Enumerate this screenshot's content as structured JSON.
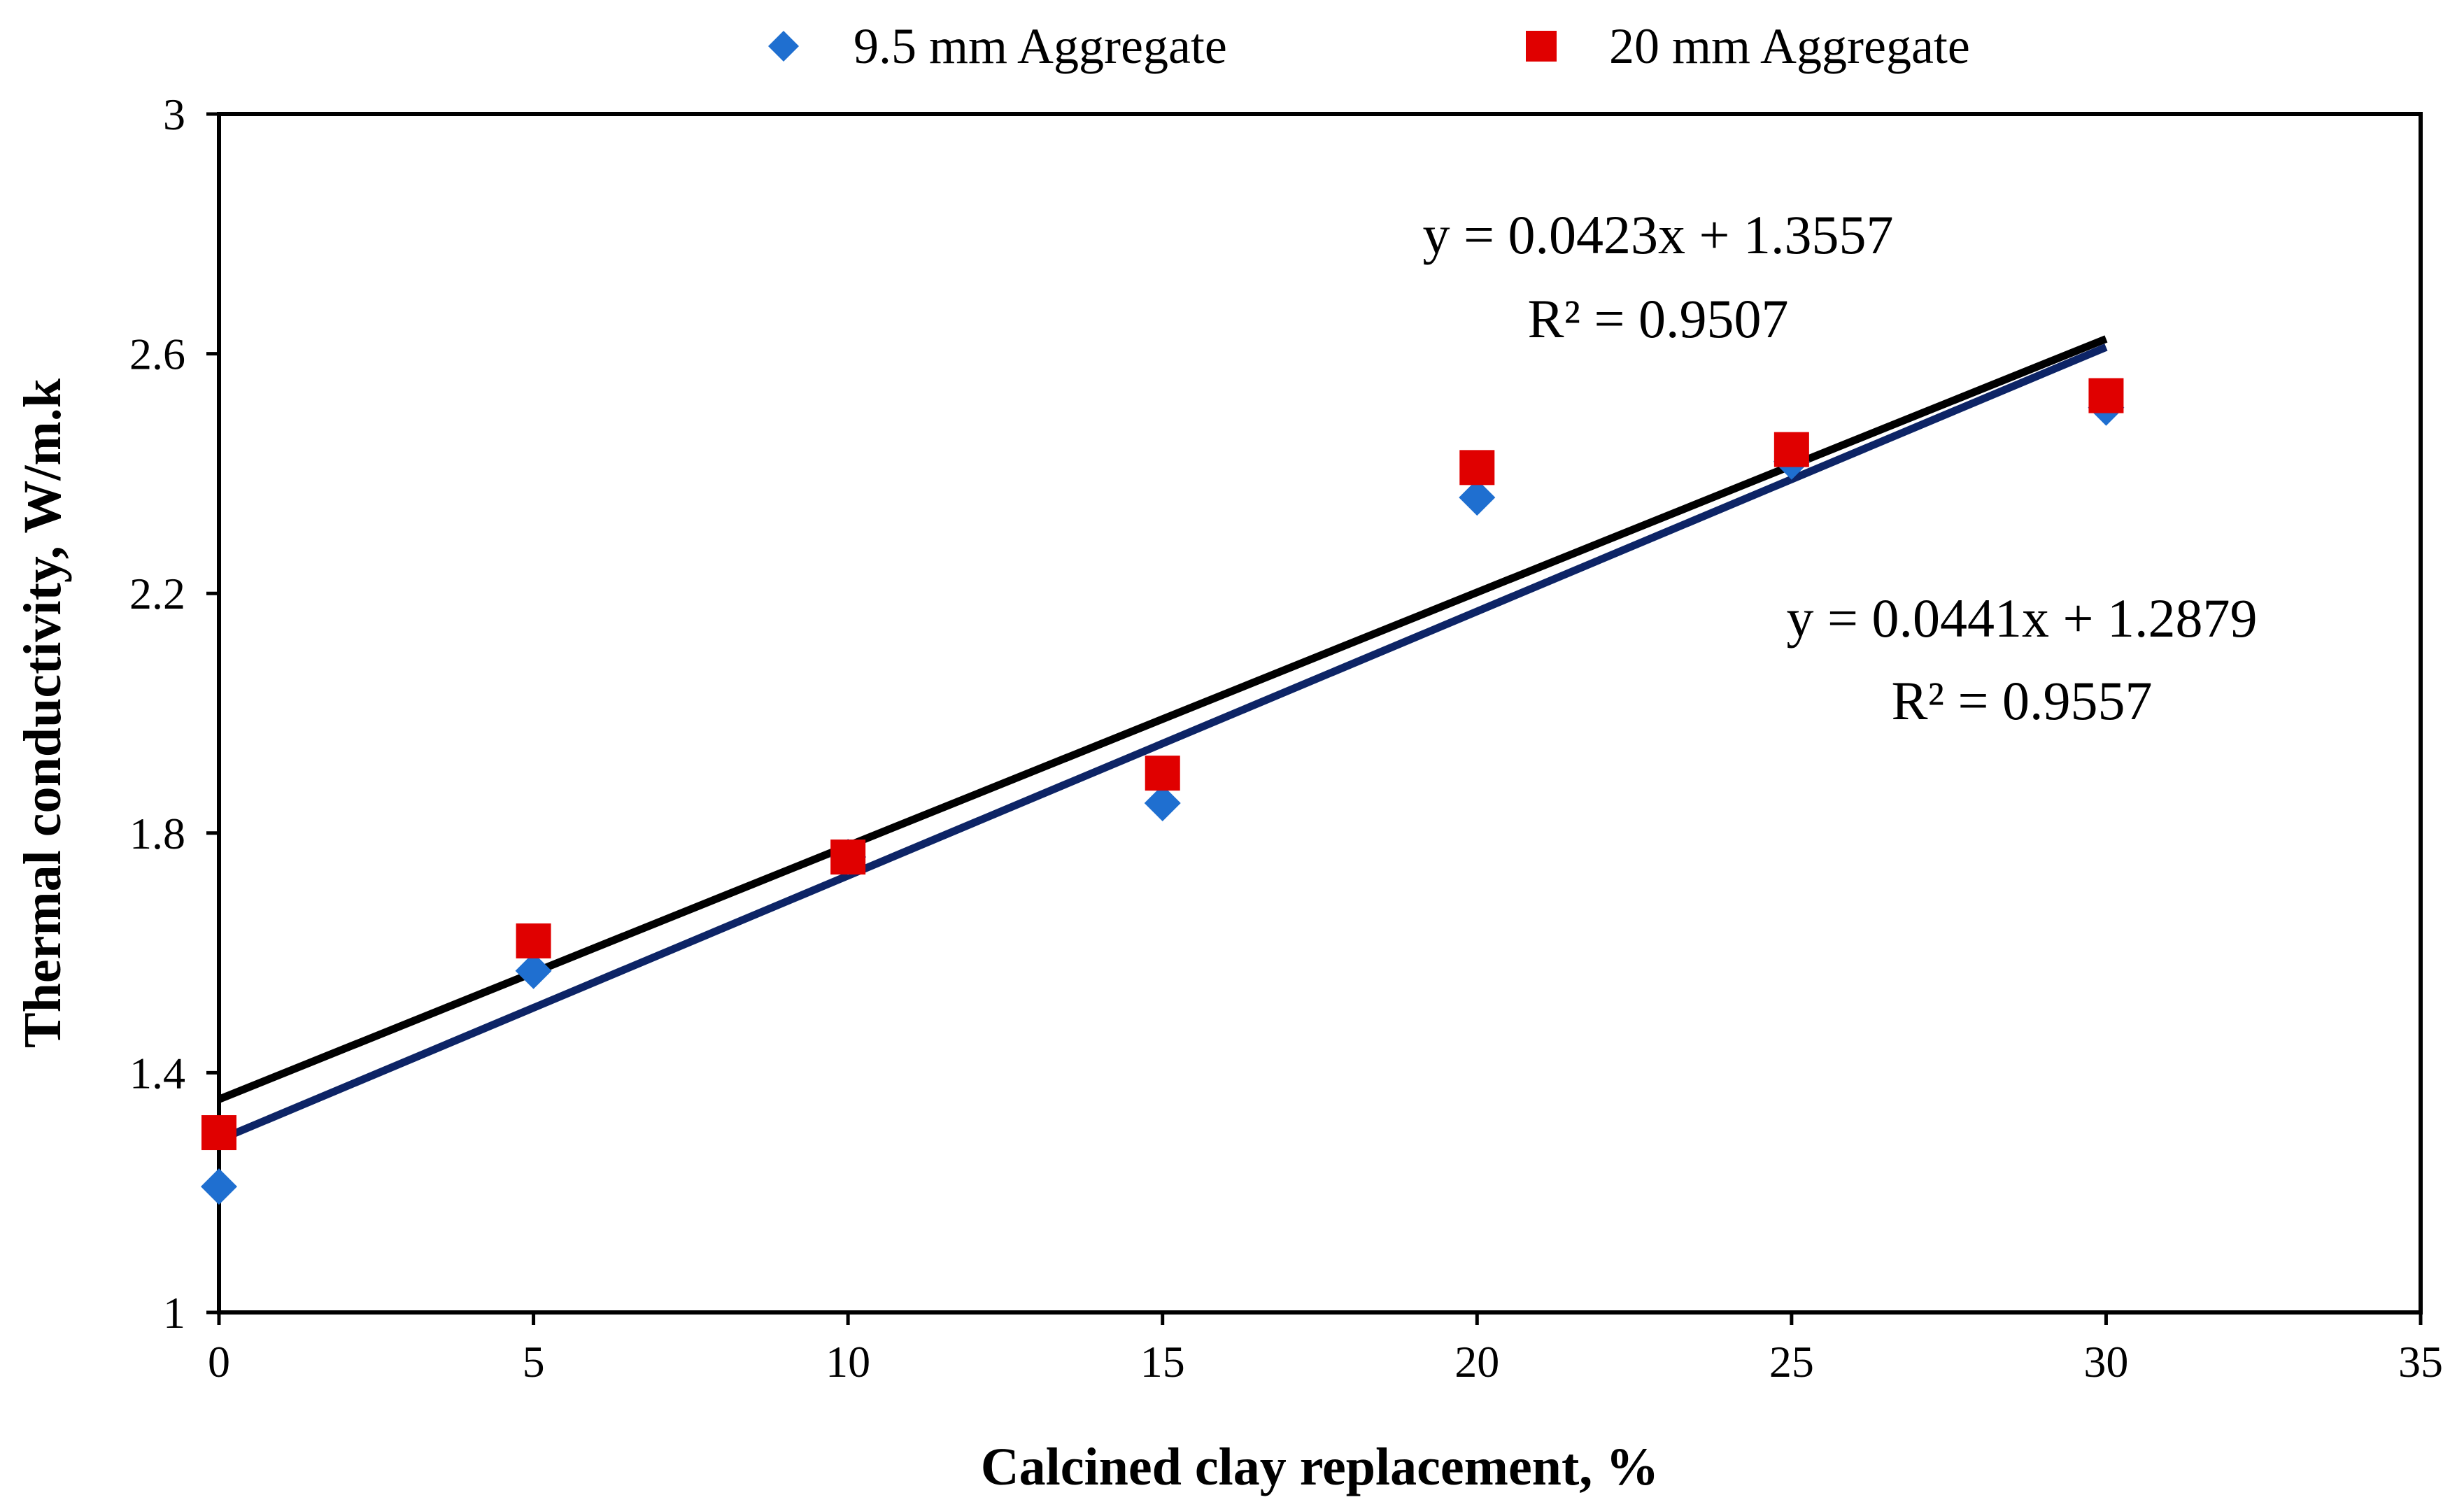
{
  "chart_data": {
    "type": "scatter",
    "title": "",
    "xlabel": "Calcined clay replacement, %",
    "ylabel": "Thermal conductivity,  W/m.k",
    "xlim": [
      0,
      35
    ],
    "ylim": [
      1,
      3
    ],
    "x_ticks": [
      0,
      5,
      10,
      15,
      20,
      25,
      30,
      35
    ],
    "y_ticks": [
      1,
      1.4,
      1.8,
      2.2,
      2.6,
      3
    ],
    "x_tick_labels": [
      "0",
      "5",
      "10",
      "15",
      "20",
      "25",
      "30",
      "35"
    ],
    "y_tick_labels": [
      "1",
      "1.4",
      "1.8",
      "2.2",
      "2.6",
      "3"
    ],
    "grid": false,
    "legend_position": "top",
    "series": [
      {
        "name": "9.5 mm Aggregate",
        "marker": "diamond",
        "color": "#1f6fd0",
        "x": [
          0,
          5,
          10,
          15,
          20,
          25,
          30
        ],
        "y": [
          1.21,
          1.57,
          1.76,
          1.85,
          2.36,
          2.42,
          2.51
        ],
        "trendline": {
          "slope": 0.0441,
          "intercept": 1.2879,
          "color": "#0d2466",
          "equation": "y = 0.0441x + 1.2879",
          "r2": "R² = 0.9557"
        }
      },
      {
        "name": "20 mm Aggregate",
        "marker": "square",
        "color": "#e00000",
        "x": [
          0,
          5,
          10,
          15,
          20,
          25,
          30
        ],
        "y": [
          1.3,
          1.62,
          1.76,
          1.9,
          2.41,
          2.44,
          2.53
        ],
        "trendline": {
          "slope": 0.0423,
          "intercept": 1.3557,
          "color": "#000000",
          "equation": "y = 0.0423x + 1.3557",
          "r2": "R² = 0.9507"
        }
      }
    ]
  }
}
